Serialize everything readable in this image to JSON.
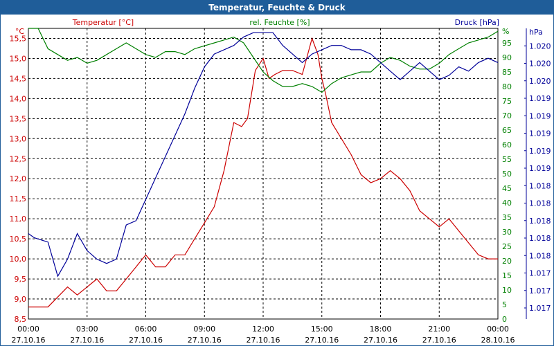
{
  "window": {
    "title": "Temperatur, Feuchte & Druck"
  },
  "chart_data": {
    "type": "line",
    "title": "Temperatur, Feuchte & Druck",
    "grid": true,
    "x_ticks": [
      {
        "time": "00:00",
        "date": "27.10.16"
      },
      {
        "time": "03:00",
        "date": "27.10.16"
      },
      {
        "time": "06:00",
        "date": "27.10.16"
      },
      {
        "time": "09:00",
        "date": "27.10.16"
      },
      {
        "time": "12:00",
        "date": "27.10.16"
      },
      {
        "time": "15:00",
        "date": "27.10.16"
      },
      {
        "time": "18:00",
        "date": "27.10.16"
      },
      {
        "time": "21:00",
        "date": "27.10.16"
      },
      {
        "time": "00:00",
        "date": "28.10.16"
      }
    ],
    "axes": {
      "temperature": {
        "label": "Temperatur [°C]",
        "unit": "°C",
        "color": "#cc0000",
        "ylim": [
          8.5,
          15.75
        ],
        "ticks": [
          "8,5",
          "9,0",
          "9,5",
          "10,0",
          "10,5",
          "11,0",
          "11,5",
          "12,0",
          "12,5",
          "13,0",
          "13,5",
          "14,0",
          "14,5",
          "15,0",
          "15,5"
        ]
      },
      "humidity": {
        "label": "rel. Feuchte [%]",
        "unit": "%",
        "color": "#008000",
        "ylim": [
          0,
          100
        ],
        "ticks": [
          "0",
          "5",
          "10",
          "15",
          "20",
          "25",
          "30",
          "35",
          "40",
          "45",
          "50",
          "55",
          "60",
          "65",
          "70",
          "75",
          "80",
          "85",
          "90",
          "95"
        ]
      },
      "pressure": {
        "label": "Druck [hPa]",
        "unit": "hPa",
        "color": "#000099",
        "ylim": [
          1016.8,
          1020.2
        ],
        "ticks": [
          "1.017",
          "1.017",
          "1.017",
          "1.018",
          "1.018",
          "1.018",
          "1.018",
          "1.018",
          "1.019",
          "1.019",
          "1.019",
          "1.019",
          "1.019",
          "1.020",
          "1.020",
          "1.020"
        ]
      }
    },
    "series": [
      {
        "name": "Temperatur [°C]",
        "axis": "temperature",
        "color": "#cc0000",
        "x_hours": [
          0,
          1,
          2,
          2.5,
          3,
          3.5,
          4,
          4.5,
          5,
          5.5,
          6,
          6.5,
          7,
          7.5,
          8,
          8.5,
          9,
          9.5,
          10,
          10.5,
          10.9,
          11.2,
          11.6,
          12,
          12.3,
          12.6,
          13,
          13.5,
          14,
          14.5,
          14.8,
          15,
          15.2,
          15.5,
          16,
          16.5,
          17,
          17.5,
          18,
          18.5,
          19,
          19.5,
          20,
          20.5,
          21,
          21.5,
          22,
          22.5,
          23,
          23.5,
          24
        ],
        "values": [
          8.8,
          8.8,
          9.3,
          9.1,
          9.3,
          9.5,
          9.2,
          9.2,
          9.5,
          9.8,
          10.1,
          9.8,
          9.8,
          10.1,
          10.1,
          10.5,
          10.9,
          11.3,
          12.2,
          13.4,
          13.3,
          13.5,
          14.7,
          15.0,
          14.5,
          14.6,
          14.7,
          14.7,
          14.6,
          15.5,
          15.1,
          14.5,
          14.1,
          13.4,
          13.0,
          12.6,
          12.1,
          11.9,
          12.0,
          12.2,
          12.0,
          11.7,
          11.2,
          11.0,
          10.8,
          11.0,
          10.7,
          10.4,
          10.1,
          10.0,
          10.0
        ],
        "unit": "°C"
      },
      {
        "name": "rel. Feuchte [%]",
        "axis": "humidity",
        "color": "#008000",
        "x_hours": [
          0,
          0.5,
          1,
          1.5,
          2,
          2.5,
          3,
          3.5,
          4,
          4.5,
          5,
          5.5,
          6,
          6.5,
          7,
          7.5,
          8,
          8.5,
          9,
          9.5,
          10,
          10.5,
          11,
          11.5,
          12,
          12.5,
          13,
          13.5,
          14,
          14.5,
          15,
          15.5,
          16,
          16.5,
          17,
          17.5,
          18,
          18.5,
          19,
          19.5,
          20,
          20.5,
          21,
          21.5,
          22,
          22.5,
          23,
          23.5,
          24
        ],
        "values": [
          100,
          100,
          93,
          91,
          89,
          90,
          88,
          89,
          91,
          93,
          95,
          93,
          91,
          90,
          92,
          92,
          91,
          93,
          94,
          95,
          96,
          97,
          95,
          90,
          85,
          82,
          80,
          80,
          81,
          80,
          78,
          81,
          83,
          84,
          85,
          85,
          88,
          90,
          89,
          87,
          86,
          86,
          88,
          91,
          93,
          95,
          96,
          97,
          99
        ],
        "unit": "%"
      },
      {
        "name": "Druck [hPa]",
        "axis": "pressure",
        "color": "#000099",
        "x_hours": [
          0,
          0.3,
          1,
          1.5,
          2,
          2.5,
          3,
          3.5,
          4,
          4.5,
          5,
          5.5,
          6,
          6.5,
          7,
          7.5,
          8,
          8.5,
          9,
          9.5,
          10,
          10.5,
          11,
          11.5,
          12,
          12.5,
          13,
          13.5,
          14,
          14.5,
          15,
          15.5,
          16,
          16.5,
          17,
          17.5,
          18,
          18.5,
          19,
          19.5,
          20,
          20.5,
          21,
          21.5,
          22,
          22.5,
          23,
          23.5,
          24
        ],
        "values": [
          1017.8,
          1017.75,
          1017.7,
          1017.3,
          1017.5,
          1017.8,
          1017.6,
          1017.5,
          1017.45,
          1017.5,
          1017.9,
          1017.95,
          1018.2,
          1018.45,
          1018.7,
          1018.95,
          1019.2,
          1019.5,
          1019.75,
          1019.9,
          1019.95,
          1020.0,
          1020.1,
          1020.15,
          1020.15,
          1020.15,
          1020.0,
          1019.9,
          1019.8,
          1019.9,
          1019.95,
          1020.0,
          1020.0,
          1019.95,
          1019.95,
          1019.9,
          1019.8,
          1019.7,
          1019.6,
          1019.7,
          1019.8,
          1019.7,
          1019.6,
          1019.65,
          1019.75,
          1019.7,
          1019.8,
          1019.85,
          1019.8
        ],
        "unit": "hPa"
      }
    ]
  }
}
